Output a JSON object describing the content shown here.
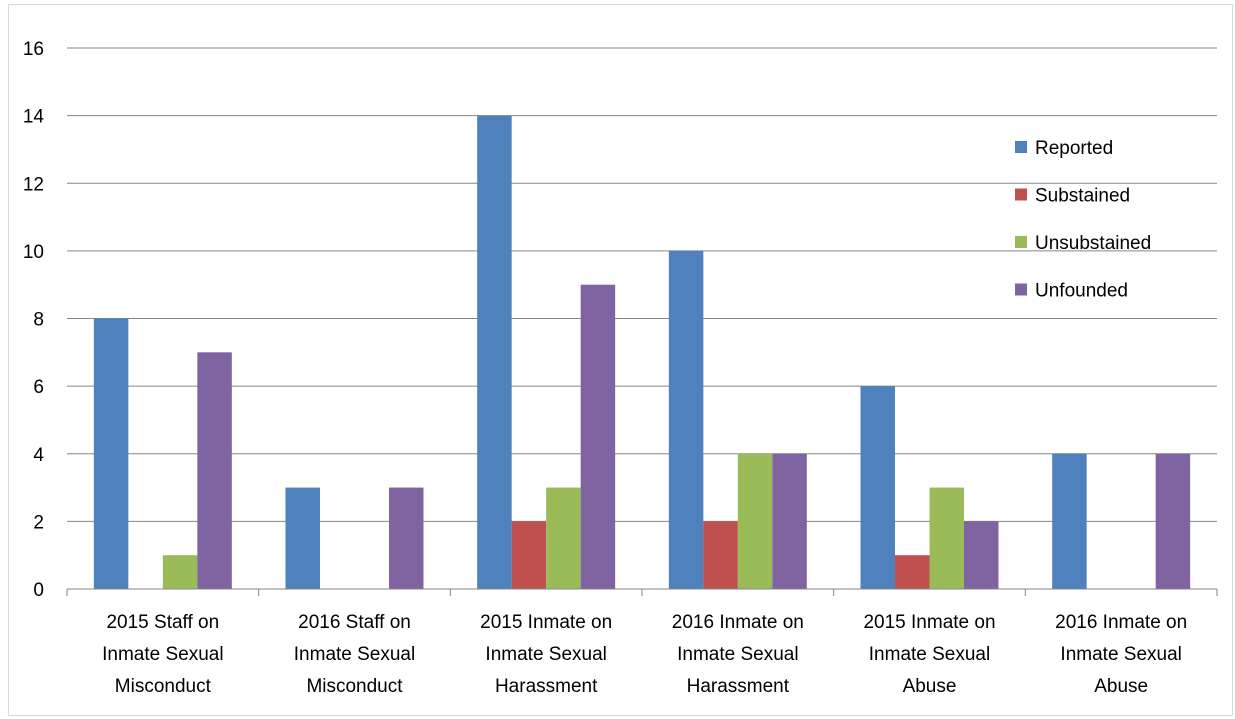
{
  "chart_data": {
    "type": "bar",
    "title": "",
    "xlabel": "",
    "ylabel": "",
    "ylim": [
      0,
      16
    ],
    "yticks": [
      0,
      2,
      4,
      6,
      8,
      10,
      12,
      14,
      16
    ],
    "grid": true,
    "legend_position": "right",
    "categories": [
      [
        "2015 Staff on",
        "Inmate Sexual",
        "Misconduct"
      ],
      [
        "2016 Staff on",
        "Inmate Sexual",
        "Misconduct"
      ],
      [
        "2015 Inmate on",
        "Inmate Sexual",
        "Harassment"
      ],
      [
        "2016 Inmate on",
        "Inmate Sexual",
        "Harassment"
      ],
      [
        "2015 Inmate on",
        "Inmate Sexual",
        "Abuse"
      ],
      [
        "2016 Inmate on",
        "Inmate Sexual",
        "Abuse"
      ]
    ],
    "series": [
      {
        "name": "Reported",
        "color": "#4F81BD",
        "values": [
          8,
          3,
          14,
          10,
          6,
          4
        ]
      },
      {
        "name": "Substained",
        "color": "#C0504D",
        "values": [
          0,
          0,
          2,
          2,
          1,
          0
        ]
      },
      {
        "name": "Unsubstained",
        "color": "#9BBB59",
        "values": [
          1,
          0,
          3,
          4,
          3,
          0
        ]
      },
      {
        "name": "Unfounded",
        "color": "#8064A2",
        "values": [
          7,
          3,
          9,
          4,
          2,
          4
        ]
      }
    ]
  }
}
